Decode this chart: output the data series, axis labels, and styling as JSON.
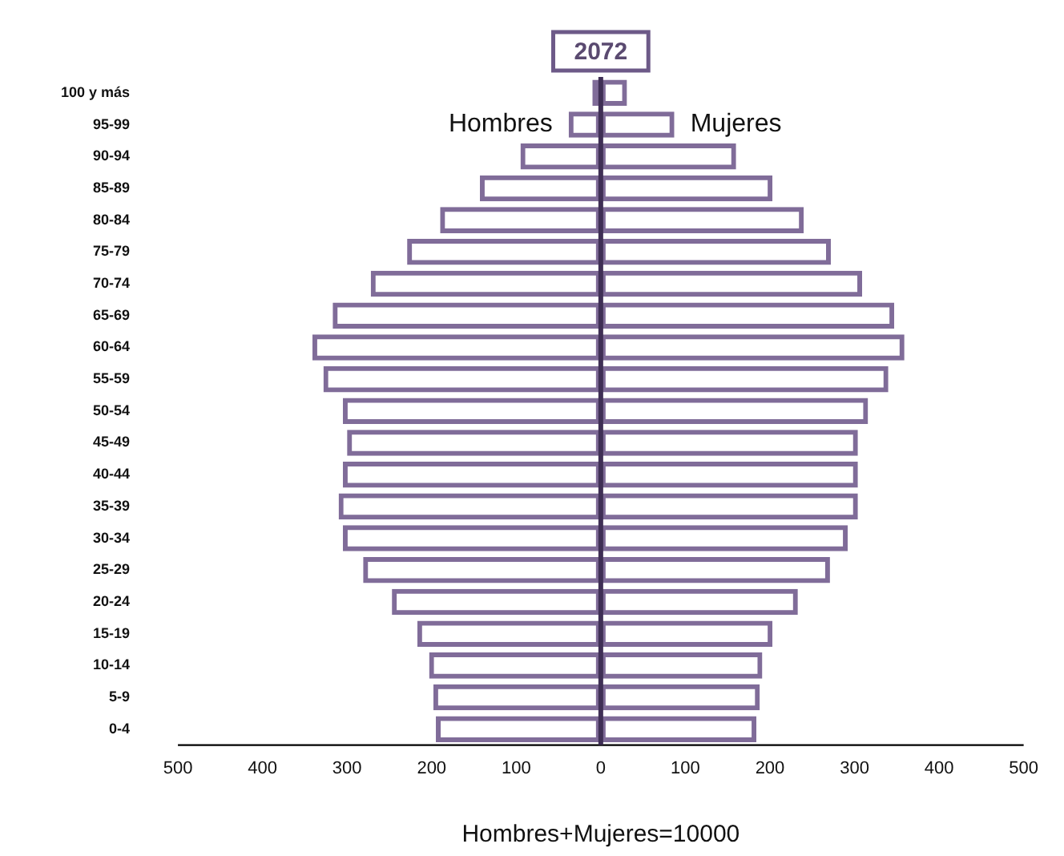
{
  "chart_data": {
    "type": "bar",
    "orientation": "horizontal",
    "stacked": true,
    "title": "2072",
    "xlabel": "Hombres+Mujeres=10000",
    "categories": [
      "100 y más",
      "95-99",
      "90-94",
      "85-89",
      "80-84",
      "75-79",
      "70-74",
      "65-69",
      "60-64",
      "55-59",
      "50-54",
      "45-49",
      "40-44",
      "35-39",
      "30-34",
      "25-29",
      "20-24",
      "15-19",
      "10-14",
      "5-9",
      "0-4"
    ],
    "series": [
      {
        "name": "Hombres",
        "color": "#806c99",
        "values": [
          -10,
          -38,
          -95,
          -143,
          -190,
          -229,
          -272,
          -317,
          -341,
          -328,
          -305,
          -300,
          -305,
          -310,
          -305,
          -281,
          -247,
          -217,
          -203,
          -198,
          -195
        ]
      },
      {
        "name": "Mujeres",
        "color": "#806c99",
        "values": [
          31,
          87,
          160,
          203,
          240,
          272,
          309,
          347,
          359,
          340,
          316,
          304,
          304,
          304,
          292,
          271,
          233,
          203,
          191,
          188,
          184
        ]
      }
    ],
    "xlim": [
      -500,
      500
    ],
    "xticks": [
      {
        "value": -500,
        "label": "500"
      },
      {
        "value": -400,
        "label": "400"
      },
      {
        "value": -300,
        "label": "300"
      },
      {
        "value": -200,
        "label": "200"
      },
      {
        "value": -100,
        "label": "100"
      },
      0,
      100,
      200,
      300,
      400,
      500
    ],
    "ref_lines": [
      {
        "axis": "x",
        "value": 0,
        "color": "#3f2f55"
      }
    ],
    "grid": false
  }
}
